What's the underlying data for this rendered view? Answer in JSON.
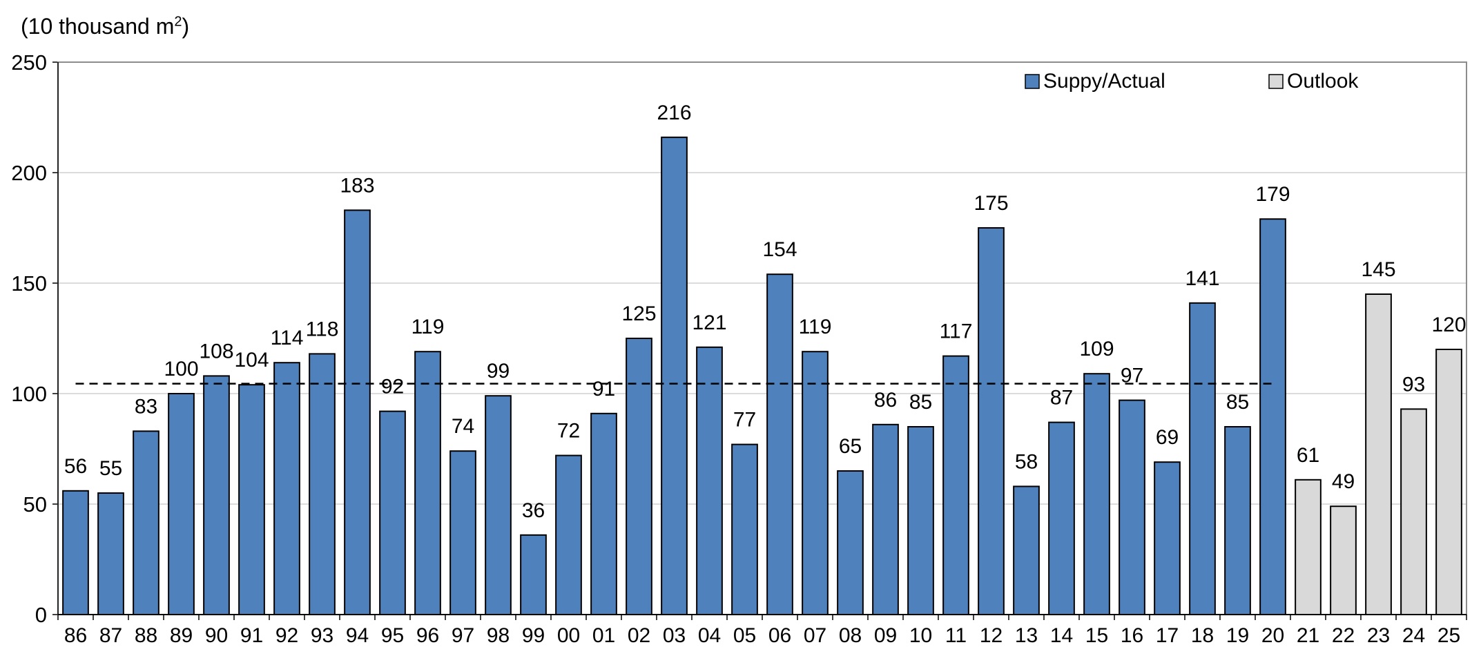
{
  "chart_data": {
    "type": "bar",
    "unit_label": {
      "text": "(10 thousand m",
      "sup": "2",
      "close": ")"
    },
    "categories": [
      "86",
      "87",
      "88",
      "89",
      "90",
      "91",
      "92",
      "93",
      "94",
      "95",
      "96",
      "97",
      "98",
      "99",
      "00",
      "01",
      "02",
      "03",
      "04",
      "05",
      "06",
      "07",
      "08",
      "09",
      "10",
      "11",
      "12",
      "13",
      "14",
      "15",
      "16",
      "17",
      "18",
      "19",
      "20",
      "21",
      "22",
      "23",
      "24",
      "25"
    ],
    "values": [
      56,
      55,
      83,
      100,
      108,
      104,
      114,
      118,
      183,
      92,
      119,
      74,
      99,
      36,
      72,
      91,
      125,
      216,
      121,
      77,
      154,
      119,
      65,
      86,
      85,
      117,
      175,
      58,
      87,
      109,
      97,
      69,
      141,
      85,
      179,
      61,
      49,
      145,
      93,
      120
    ],
    "series": [
      {
        "name": "Suppy/Actual",
        "color": "#4f81bd",
        "from": 0,
        "to": 34
      },
      {
        "name": "Outlook",
        "color": "#d9d9d9",
        "from": 35,
        "to": 39
      }
    ],
    "reference_line": {
      "value": 104.5,
      "style": "dashed",
      "spans": "86-20"
    },
    "ylim": [
      0,
      250
    ],
    "yticks": [
      0,
      50,
      100,
      150,
      200,
      250
    ],
    "grid": true,
    "legend_position": "top-right",
    "bar_edge_color": "#000000"
  }
}
